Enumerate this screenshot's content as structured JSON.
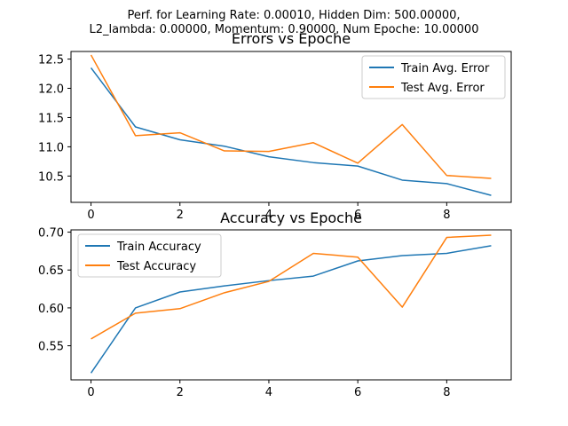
{
  "figure": {
    "suptitle_line1": "Perf. for Learning Rate: 0.00010, Hidden Dim: 500.00000,",
    "suptitle_line2": "L2_lambda: 0.00000, Momentum: 0.90000, Num Epoche: 10.00000"
  },
  "colors": {
    "train": "#1f77b4",
    "test": "#ff7f0e"
  },
  "chart_data": [
    {
      "type": "line",
      "title": "Errors vs Epoche",
      "xlabel": "",
      "ylabel": "",
      "x": [
        0,
        1,
        2,
        3,
        4,
        5,
        6,
        7,
        8,
        9
      ],
      "xlim": [
        -0.45,
        9.45
      ],
      "ylim": [
        10.05,
        12.63
      ],
      "xticks": [
        0,
        2,
        4,
        6,
        8
      ],
      "yticks": [
        10.5,
        11.0,
        11.5,
        12.0,
        12.5
      ],
      "ytick_labels": [
        "10.5",
        "11.0",
        "11.5",
        "12.0",
        "12.5"
      ],
      "legend_position": "top-right",
      "series": [
        {
          "name": "Train Avg. Error",
          "values": [
            12.35,
            11.34,
            11.12,
            11.01,
            10.83,
            10.73,
            10.67,
            10.43,
            10.37,
            10.17
          ]
        },
        {
          "name": "Test Avg. Error",
          "values": [
            12.57,
            11.19,
            11.24,
            10.93,
            10.92,
            11.07,
            10.72,
            11.38,
            10.51,
            10.46
          ]
        }
      ]
    },
    {
      "type": "line",
      "title": "Accuracy vs Epoche",
      "xlabel": "",
      "ylabel": "",
      "x": [
        0,
        1,
        2,
        3,
        4,
        5,
        6,
        7,
        8,
        9
      ],
      "xlim": [
        -0.45,
        9.45
      ],
      "ylim": [
        0.505,
        0.703
      ],
      "xticks": [
        0,
        2,
        4,
        6,
        8
      ],
      "yticks": [
        0.55,
        0.6,
        0.65,
        0.7
      ],
      "ytick_labels": [
        "0.55",
        "0.60",
        "0.65",
        "0.70"
      ],
      "legend_position": "top-left",
      "series": [
        {
          "name": "Train Accuracy",
          "values": [
            0.514,
            0.6,
            0.621,
            0.629,
            0.636,
            0.642,
            0.662,
            0.669,
            0.672,
            0.682
          ]
        },
        {
          "name": "Test Accuracy",
          "values": [
            0.559,
            0.593,
            0.599,
            0.62,
            0.635,
            0.672,
            0.667,
            0.601,
            0.693,
            0.696
          ]
        }
      ]
    }
  ]
}
